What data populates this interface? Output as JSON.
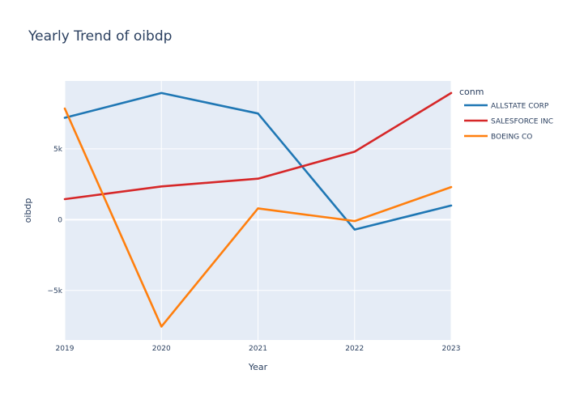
{
  "chart_data": {
    "type": "line",
    "title": "Yearly Trend of oibdp",
    "xlabel": "Year",
    "ylabel": "oibdp",
    "x": [
      2019,
      2020,
      2021,
      2022,
      2023
    ],
    "x_tick_labels": [
      "2019",
      "2020",
      "2021",
      "2022",
      "2023"
    ],
    "y_ticks": [
      -5000,
      0,
      5000
    ],
    "y_tick_labels": [
      "−5k",
      "0",
      "5k"
    ],
    "xlim": [
      2019,
      2023
    ],
    "ylim": [
      -8500,
      9800
    ],
    "grid": true,
    "legend_title": "conm",
    "legend_position": "top-right",
    "series": [
      {
        "name": "ALLSTATE CORP",
        "color": "#1f77b4",
        "values": [
          7200,
          8950,
          7500,
          -700,
          1000
        ]
      },
      {
        "name": "SALESFORCE INC",
        "color": "#d62728",
        "values": [
          1450,
          2350,
          2900,
          4800,
          8950
        ]
      },
      {
        "name": "BOEING CO",
        "color": "#ff7f0e",
        "values": [
          7850,
          -7550,
          800,
          -100,
          2300
        ]
      }
    ]
  }
}
